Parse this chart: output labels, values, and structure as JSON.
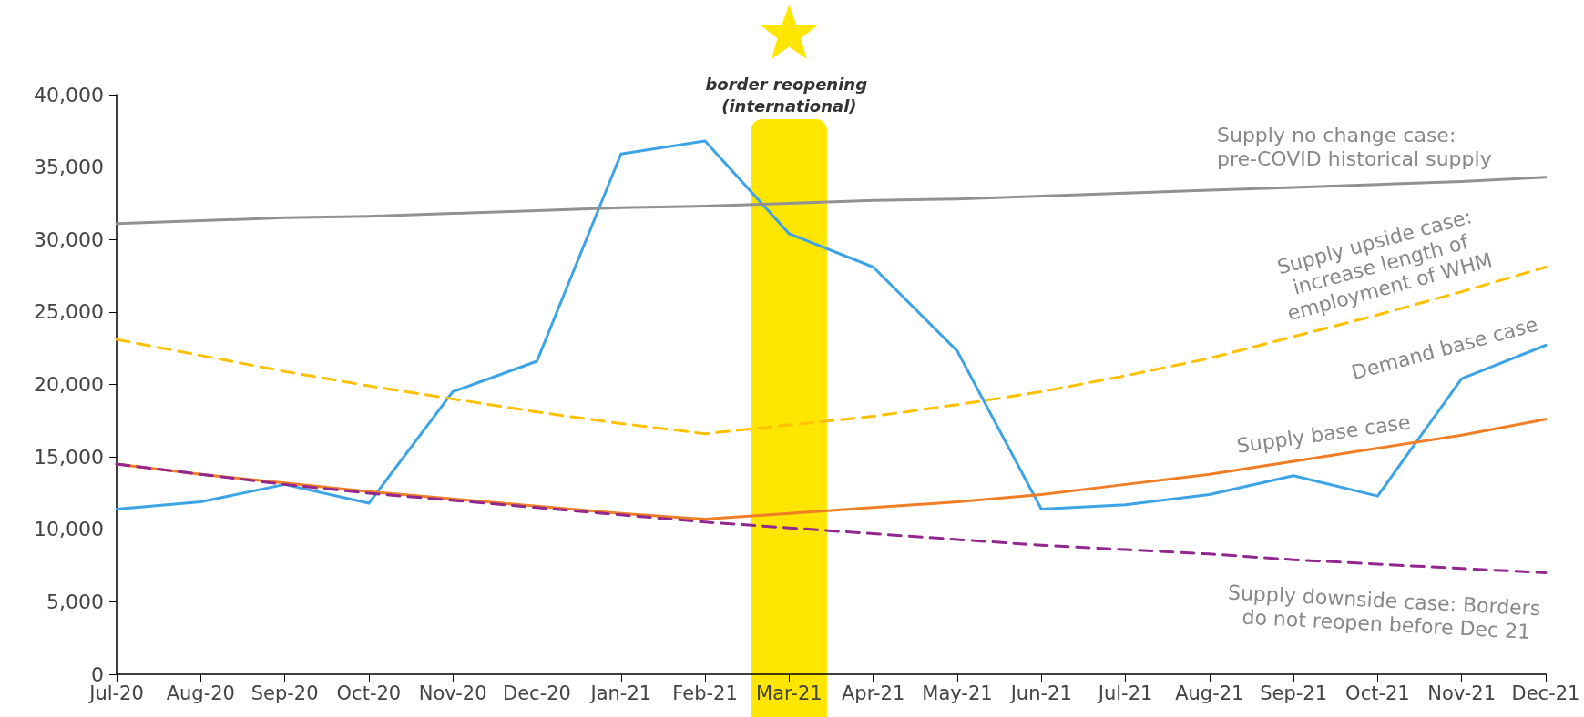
{
  "chart_data": {
    "type": "line",
    "categories": [
      "Jul-20",
      "Aug-20",
      "Sep-20",
      "Oct-20",
      "Nov-20",
      "Dec-20",
      "Jan-21",
      "Feb-21",
      "Mar-21",
      "Apr-21",
      "May-21",
      "Jun-21",
      "Jul-21",
      "Aug-21",
      "Sep-21",
      "Oct-21",
      "Nov-21",
      "Dec-21"
    ],
    "series": [
      {
        "name": "Demand base case",
        "color": "#3ba3e6",
        "line_style": "solid",
        "values": [
          11400,
          11900,
          13100,
          11800,
          19500,
          21600,
          35900,
          36800,
          30400,
          28100,
          22300,
          11400,
          11700,
          12400,
          13700,
          12300,
          20400,
          22700
        ]
      },
      {
        "name": "Supply no change case: pre-COVID historical supply",
        "color": "#919191",
        "line_style": "solid",
        "values": [
          31100,
          31300,
          31500,
          31600,
          31800,
          32000,
          32200,
          32300,
          32500,
          32700,
          32800,
          33000,
          33200,
          33400,
          33600,
          33800,
          34000,
          34300
        ]
      },
      {
        "name": "Supply upside case: increase length of employment of WHM",
        "color": "#ffc000",
        "line_style": "dashed",
        "values": [
          23100,
          22000,
          20900,
          19900,
          19000,
          18100,
          17300,
          16600,
          17200,
          17800,
          18600,
          19500,
          20600,
          21800,
          23300,
          24800,
          26400,
          28100
        ]
      },
      {
        "name": "Supply base case",
        "color": "#f07e26",
        "line_style": "solid",
        "values": [
          14500,
          13800,
          13200,
          12600,
          12100,
          11600,
          11100,
          10700,
          11100,
          11500,
          11900,
          12400,
          13100,
          13800,
          14700,
          15600,
          16500,
          17600
        ]
      },
      {
        "name": "Supply downside case: Borders do not reopen before Dec 21",
        "color": "#91278f",
        "line_style": "dashed",
        "values": [
          14500,
          13800,
          13100,
          12500,
          12000,
          11500,
          11000,
          10500,
          10100,
          9700,
          9300,
          8900,
          8600,
          8300,
          7900,
          7600,
          7300,
          7000
        ]
      }
    ],
    "ylim": [
      0,
      40000
    ],
    "yticks": [
      0,
      {
        "value": 5000,
        "label": "5,000"
      },
      {
        "value": 10000,
        "label": "10,000"
      },
      {
        "value": 15000,
        "label": "15,000"
      },
      {
        "value": 20000,
        "label": "20,000"
      },
      {
        "value": 25000,
        "label": "25,000"
      },
      {
        "value": 30000,
        "label": "30,000"
      },
      {
        "value": 35000,
        "label": "35,000"
      },
      {
        "value": 40000,
        "label": "40,000"
      }
    ],
    "bands": [
      {
        "axis": "x",
        "from": "Mar-21",
        "to": "Mar-21",
        "color": "#ffe600"
      }
    ],
    "annotations": [
      "border reopening (international)"
    ],
    "marker": "none",
    "grid": false,
    "legend": false
  }
}
